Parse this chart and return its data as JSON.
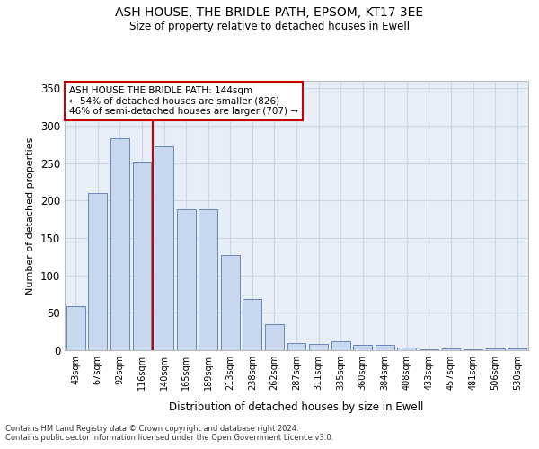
{
  "title1": "ASH HOUSE, THE BRIDLE PATH, EPSOM, KT17 3EE",
  "title2": "Size of property relative to detached houses in Ewell",
  "xlabel": "Distribution of detached houses by size in Ewell",
  "ylabel": "Number of detached properties",
  "categories": [
    "43sqm",
    "67sqm",
    "92sqm",
    "116sqm",
    "140sqm",
    "165sqm",
    "189sqm",
    "213sqm",
    "238sqm",
    "262sqm",
    "287sqm",
    "311sqm",
    "335sqm",
    "360sqm",
    "384sqm",
    "408sqm",
    "433sqm",
    "457sqm",
    "481sqm",
    "506sqm",
    "530sqm"
  ],
  "values": [
    59,
    210,
    283,
    252,
    272,
    188,
    188,
    127,
    68,
    35,
    10,
    9,
    12,
    7,
    7,
    4,
    1,
    3,
    1,
    2,
    3
  ],
  "bar_color": "#c8d8ee",
  "bar_edge_color": "#6888b8",
  "ref_line_color": "#cc0000",
  "annotation_text": "ASH HOUSE THE BRIDLE PATH: 144sqm\n← 54% of detached houses are smaller (826)\n46% of semi-detached houses are larger (707) →",
  "annotation_box_facecolor": "#ffffff",
  "annotation_box_edgecolor": "#cc0000",
  "ylim": [
    0,
    360
  ],
  "yticks": [
    0,
    50,
    100,
    150,
    200,
    250,
    300,
    350
  ],
  "footer1": "Contains HM Land Registry data © Crown copyright and database right 2024.",
  "footer2": "Contains public sector information licensed under the Open Government Licence v3.0.",
  "grid_color": "#ccd5e5",
  "background_color": "#e8eef8"
}
